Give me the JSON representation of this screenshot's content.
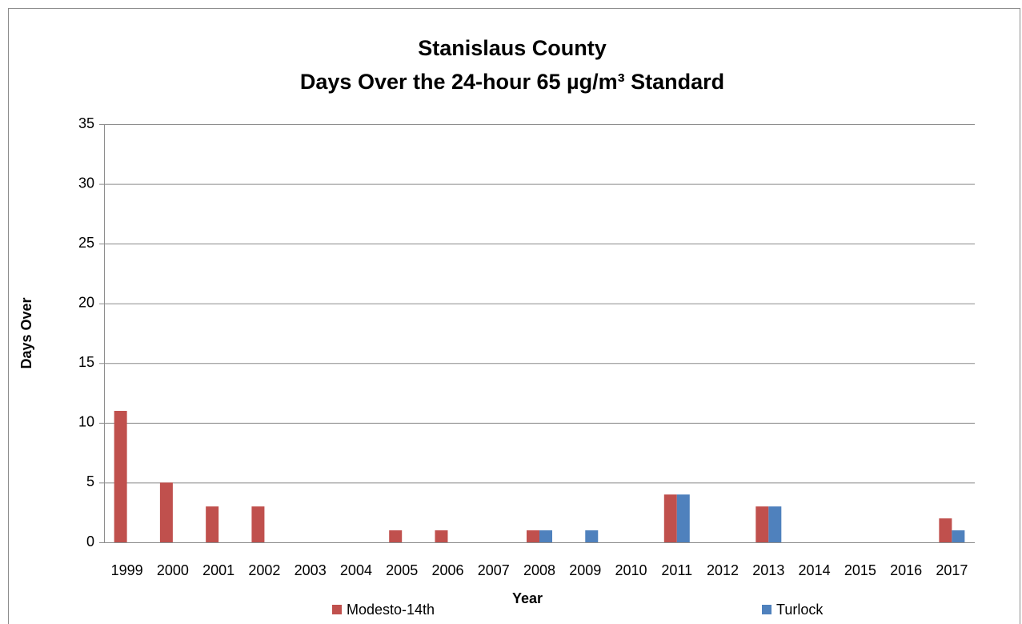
{
  "chart_data": {
    "type": "bar",
    "title": [
      "Stanislaus County",
      "Days Over the 24-hour 65 µg/m³ Standard"
    ],
    "x_label": "Year",
    "y_label": "Days Over",
    "categories": [
      "1999",
      "2000",
      "2001",
      "2002",
      "2003",
      "2004",
      "2005",
      "2006",
      "2007",
      "2008",
      "2009",
      "2010",
      "2011",
      "2012",
      "2013",
      "2014",
      "2015",
      "2016",
      "2017"
    ],
    "series": [
      {
        "name": "Modesto-14th",
        "color": "#c0504d",
        "values": [
          11,
          5,
          3,
          3,
          0,
          0,
          1,
          1,
          0,
          1,
          0,
          0,
          4,
          0,
          3,
          0,
          0,
          0,
          2
        ]
      },
      {
        "name": "Turlock",
        "color": "#4f81bd",
        "values": [
          0,
          0,
          0,
          0,
          0,
          0,
          0,
          0,
          0,
          1,
          1,
          0,
          4,
          0,
          3,
          0,
          0,
          0,
          1
        ]
      }
    ],
    "ylim": [
      0,
      35
    ],
    "yticks": [
      0,
      5,
      10,
      15,
      20,
      25,
      30,
      35
    ],
    "grid": true
  }
}
